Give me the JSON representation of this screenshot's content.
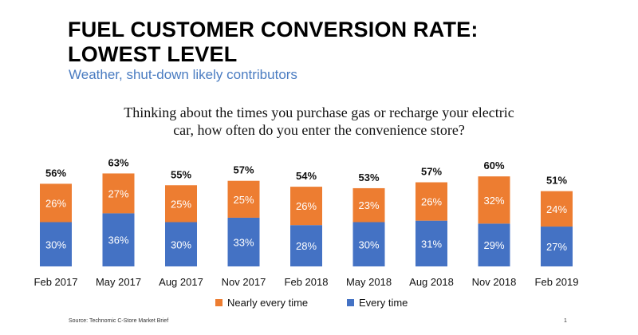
{
  "header": {
    "title_line1": "FUEL CUSTOMER CONVERSION RATE:",
    "title_line2": "LOWEST LEVEL",
    "subtitle": "Weather, shut-down likely contributors"
  },
  "question": {
    "line1": "Thinking about the times you purchase gas or recharge your electric",
    "line2": "car, how often do you enter the convenience store?"
  },
  "chart_data": {
    "type": "bar",
    "stacked": true,
    "categories": [
      "Feb 2017",
      "May 2017",
      "Aug 2017",
      "Nov 2017",
      "Feb 2018",
      "May 2018",
      "Aug 2018",
      "Nov 2018",
      "Feb 2019"
    ],
    "series": [
      {
        "name": "Every time",
        "color": "#4472c4",
        "values": [
          30,
          36,
          30,
          33,
          28,
          30,
          31,
          29,
          27
        ]
      },
      {
        "name": "Nearly every time",
        "color": "#ed7d31",
        "values": [
          26,
          27,
          25,
          25,
          26,
          23,
          26,
          32,
          24
        ]
      }
    ],
    "totals": [
      56,
      63,
      55,
      57,
      54,
      53,
      57,
      60,
      51
    ],
    "total_labels": [
      "56%",
      "63%",
      "55%",
      "57%",
      "54%",
      "53%",
      "57%",
      "60%",
      "51%"
    ],
    "every_labels": [
      "30%",
      "36%",
      "30%",
      "33%",
      "28%",
      "30%",
      "31%",
      "29%",
      "27%"
    ],
    "nearly_labels": [
      "26%",
      "27%",
      "25%",
      "25%",
      "26%",
      "23%",
      "26%",
      "32%",
      "24%"
    ],
    "grid": false,
    "legend_position": "bottom"
  },
  "legend": {
    "nearly": "Nearly every time",
    "every": "Every time",
    "nearly_color": "#ed7d31",
    "every_color": "#4472c4"
  },
  "footer": {
    "source": "Source: Technomic C-Store Market Brief",
    "page": "1"
  }
}
